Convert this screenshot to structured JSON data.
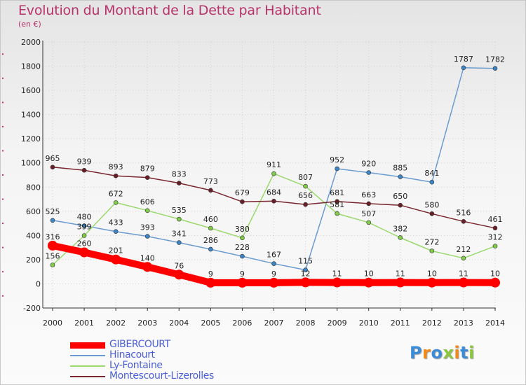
{
  "header": {
    "title": "Evolution du Montant de la Dette par Habitant",
    "subtitle": "(en €)"
  },
  "logo": {
    "letters": [
      {
        "char": "P",
        "color": "#3b8bd6"
      },
      {
        "char": "r",
        "color": "#f08a1c"
      },
      {
        "char": "o",
        "color": "#3b8bd6"
      },
      {
        "char": "x",
        "color": "#8cc63f"
      },
      {
        "char": "i",
        "color": "#f08a1c"
      },
      {
        "char": "t",
        "color": "#3b8bd6"
      },
      {
        "char": "i",
        "color": "#8cc63f"
      }
    ]
  },
  "chart_data": {
    "type": "line",
    "title": "Evolution du Montant de la Dette par Habitant",
    "ylabel": "(en €)",
    "xlabel": "",
    "x": [
      "2000",
      "2001",
      "2002",
      "2003",
      "2004",
      "2005",
      "2006",
      "2007",
      "2008",
      "2009",
      "2010",
      "2011",
      "2012",
      "2013",
      "2014"
    ],
    "ylim": [
      -200,
      2000
    ],
    "yticks": [
      "-200",
      "0",
      "200",
      "400",
      "600",
      "800",
      "1000",
      "1200",
      "1400",
      "1600",
      "1800",
      "2000"
    ],
    "legend_position": "bottom",
    "series": [
      {
        "name": "GIBERCOURT",
        "color": "#ff0000",
        "emphasis": true,
        "values": [
          316,
          260,
          201,
          140,
          76,
          9,
          9,
          9,
          12,
          11,
          10,
          11,
          10,
          11,
          10
        ],
        "labels": [
          "316",
          "260",
          "201",
          "140",
          "76",
          "9",
          "9",
          "9",
          "12",
          "11",
          "10",
          "11",
          "10",
          "11",
          "10"
        ]
      },
      {
        "name": "Hinacourt",
        "color": "#6b9ccf",
        "dot": "#3c86c8",
        "values": [
          525,
          480,
          433,
          393,
          341,
          286,
          228,
          167,
          115,
          952,
          920,
          885,
          841,
          1787,
          1782
        ],
        "labels": [
          "525",
          "480",
          "433",
          "393",
          "341",
          "286",
          "228",
          "167",
          "115",
          "952",
          "920",
          "885",
          "841",
          "1787",
          "1782"
        ]
      },
      {
        "name": "Ly-Fontaine",
        "color": "#9bd86e",
        "dot": "#80cc48",
        "values": [
          156,
          399,
          672,
          606,
          535,
          460,
          380,
          911,
          807,
          581,
          507,
          382,
          272,
          212,
          312
        ],
        "labels": [
          "156",
          "399",
          "672",
          "606",
          "535",
          "460",
          "380",
          "911",
          "807",
          "581",
          "507",
          "382",
          "272",
          "212",
          "312"
        ]
      },
      {
        "name": "Montescourt-Lizerolles",
        "color": "#7a2630",
        "dot": "#6a1e28",
        "values": [
          965,
          939,
          893,
          879,
          833,
          773,
          679,
          684,
          656,
          681,
          663,
          650,
          580,
          516,
          461
        ],
        "labels": [
          "965",
          "939",
          "893",
          "879",
          "833",
          "773",
          "679",
          "684",
          "656",
          "681",
          "663",
          "650",
          "580",
          "516",
          "461"
        ]
      }
    ]
  }
}
